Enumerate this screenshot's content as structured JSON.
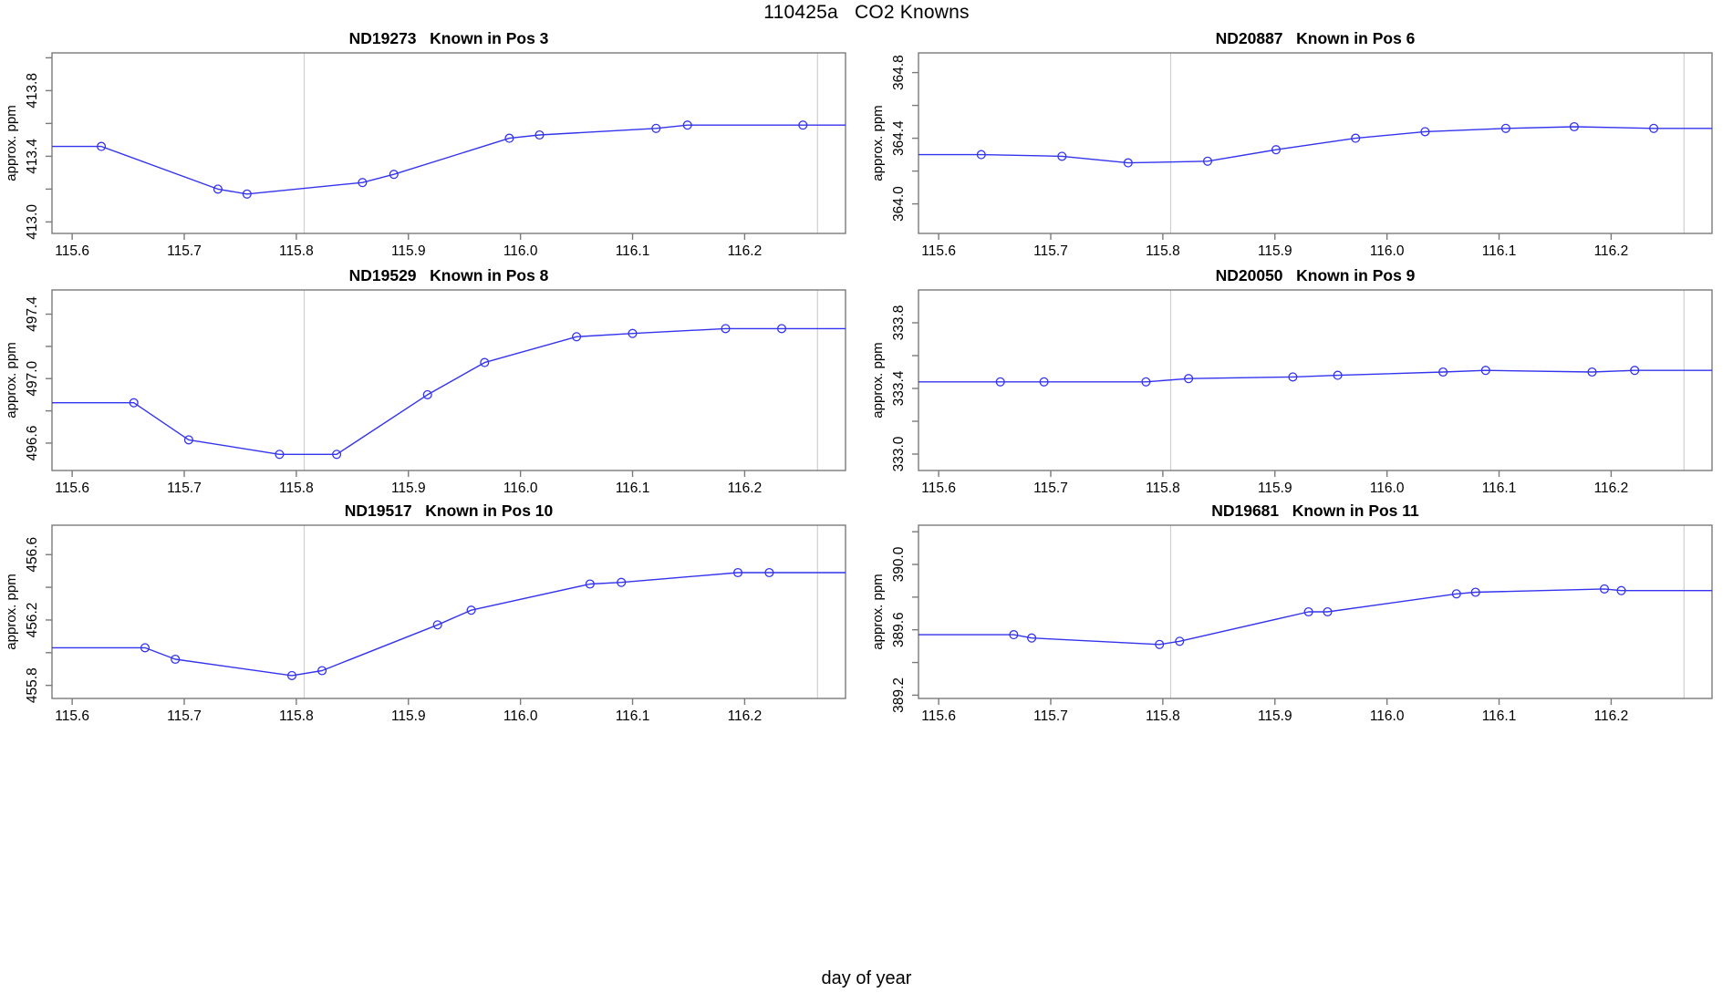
{
  "main_title": "110425a   CO2 Knowns",
  "footer_xlabel": "day of year",
  "chart_data": {
    "type": "line",
    "layout": "3 rows x 2 cols of small multiples",
    "xlabel": "day of year",
    "xlim": [
      115.582,
      116.29
    ],
    "xticks": [
      {
        "v": 115.6,
        "label": "115.6"
      },
      {
        "v": 115.7,
        "label": "115.7"
      },
      {
        "v": 115.8,
        "label": "115.8"
      },
      {
        "v": 115.9,
        "label": "115.9"
      },
      {
        "v": 116.0,
        "label": "116.0"
      },
      {
        "v": 116.1,
        "label": "116.1"
      },
      {
        "v": 116.2,
        "label": "116.2"
      }
    ],
    "vlines": [
      115.807,
      116.265
    ],
    "line_color": "#3434ee",
    "marker": "open-circle",
    "refline_color": "#cfcfcf",
    "box_color": "#7a7a7a",
    "grid": false,
    "legend": "none",
    "panels": [
      {
        "series_id": "ND19273",
        "title": "ND19273   Known in Pos 3",
        "ylabel": "approx. ppm",
        "ylim": [
          412.93,
          414.03
        ],
        "yticks": [
          [
            413.0,
            "413.0"
          ],
          [
            413.2,
            ""
          ],
          [
            413.4,
            "413.4"
          ],
          [
            413.6,
            ""
          ],
          [
            413.8,
            "413.8"
          ],
          [
            414.0,
            ""
          ]
        ],
        "points": [
          [
            115.626,
            413.46
          ],
          [
            115.73,
            413.2
          ],
          [
            115.756,
            413.17
          ],
          [
            115.859,
            413.24
          ],
          [
            115.887,
            413.29
          ],
          [
            115.99,
            413.51
          ],
          [
            116.017,
            413.53
          ],
          [
            116.121,
            413.57
          ],
          [
            116.149,
            413.59
          ],
          [
            116.252,
            413.59
          ]
        ]
      },
      {
        "series_id": "ND20887",
        "title": "ND20887   Known in Pos 6",
        "ylabel": "approx. ppm",
        "ylim": [
          363.82,
          364.92
        ],
        "yticks": [
          [
            364.0,
            "364.0"
          ],
          [
            364.2,
            ""
          ],
          [
            364.4,
            "364.4"
          ],
          [
            364.6,
            ""
          ],
          [
            364.8,
            "364.8"
          ]
        ],
        "points": [
          [
            115.638,
            364.3
          ],
          [
            115.71,
            364.29
          ],
          [
            115.769,
            364.25
          ],
          [
            115.84,
            364.26
          ],
          [
            115.901,
            364.33
          ],
          [
            115.972,
            364.4
          ],
          [
            116.034,
            364.44
          ],
          [
            116.106,
            364.46
          ],
          [
            116.167,
            364.47
          ],
          [
            116.238,
            364.46
          ]
        ]
      },
      {
        "series_id": "ND19529",
        "title": "ND19529   Known in Pos 8",
        "ylabel": "approx. ppm",
        "ylim": [
          496.43,
          497.55
        ],
        "yticks": [
          [
            496.6,
            "496.6"
          ],
          [
            496.8,
            ""
          ],
          [
            497.0,
            "497.0"
          ],
          [
            497.2,
            ""
          ],
          [
            497.4,
            "497.4"
          ]
        ],
        "points": [
          [
            115.655,
            496.85
          ],
          [
            115.704,
            496.62
          ],
          [
            115.785,
            496.53
          ],
          [
            115.836,
            496.53
          ],
          [
            115.917,
            496.9
          ],
          [
            115.968,
            497.1
          ],
          [
            116.05,
            497.26
          ],
          [
            116.1,
            497.28
          ],
          [
            116.183,
            497.31
          ],
          [
            116.233,
            497.31
          ]
        ]
      },
      {
        "series_id": "ND20050",
        "title": "ND20050   Known in Pos 9",
        "ylabel": "approx. ppm",
        "ylim": [
          332.9,
          334.0
        ],
        "yticks": [
          [
            333.0,
            "333.0"
          ],
          [
            333.2,
            ""
          ],
          [
            333.4,
            "333.4"
          ],
          [
            333.6,
            ""
          ],
          [
            333.8,
            "333.8"
          ]
        ],
        "points": [
          [
            115.655,
            333.44
          ],
          [
            115.694,
            333.44
          ],
          [
            115.785,
            333.44
          ],
          [
            115.823,
            333.46
          ],
          [
            115.916,
            333.47
          ],
          [
            115.956,
            333.48
          ],
          [
            116.05,
            333.5
          ],
          [
            116.088,
            333.51
          ],
          [
            116.183,
            333.5
          ],
          [
            116.221,
            333.51
          ]
        ]
      },
      {
        "series_id": "ND19517",
        "title": "ND19517   Known in Pos 10",
        "ylabel": "approx. ppm",
        "ylim": [
          455.72,
          456.78
        ],
        "yticks": [
          [
            455.8,
            "455.8"
          ],
          [
            456.0,
            ""
          ],
          [
            456.2,
            "456.2"
          ],
          [
            456.4,
            ""
          ],
          [
            456.6,
            "456.6"
          ]
        ],
        "points": [
          [
            115.665,
            456.03
          ],
          [
            115.692,
            455.96
          ],
          [
            115.796,
            455.86
          ],
          [
            115.823,
            455.89
          ],
          [
            115.926,
            456.17
          ],
          [
            115.956,
            456.26
          ],
          [
            116.062,
            456.42
          ],
          [
            116.09,
            456.43
          ],
          [
            116.194,
            456.49
          ],
          [
            116.222,
            456.49
          ]
        ]
      },
      {
        "series_id": "ND19681",
        "title": "ND19681   Known in Pos 11",
        "ylabel": "approx. ppm",
        "ylim": [
          389.18,
          390.24
        ],
        "yticks": [
          [
            389.2,
            "389.2"
          ],
          [
            389.4,
            ""
          ],
          [
            389.6,
            "389.6"
          ],
          [
            389.8,
            ""
          ],
          [
            390.0,
            "390.0"
          ],
          [
            390.2,
            ""
          ]
        ],
        "points": [
          [
            115.667,
            389.57
          ],
          [
            115.683,
            389.55
          ],
          [
            115.797,
            389.51
          ],
          [
            115.815,
            389.53
          ],
          [
            115.93,
            389.71
          ],
          [
            115.947,
            389.71
          ],
          [
            116.062,
            389.82
          ],
          [
            116.079,
            389.83
          ],
          [
            116.194,
            389.85
          ],
          [
            116.209,
            389.84
          ]
        ]
      }
    ]
  }
}
